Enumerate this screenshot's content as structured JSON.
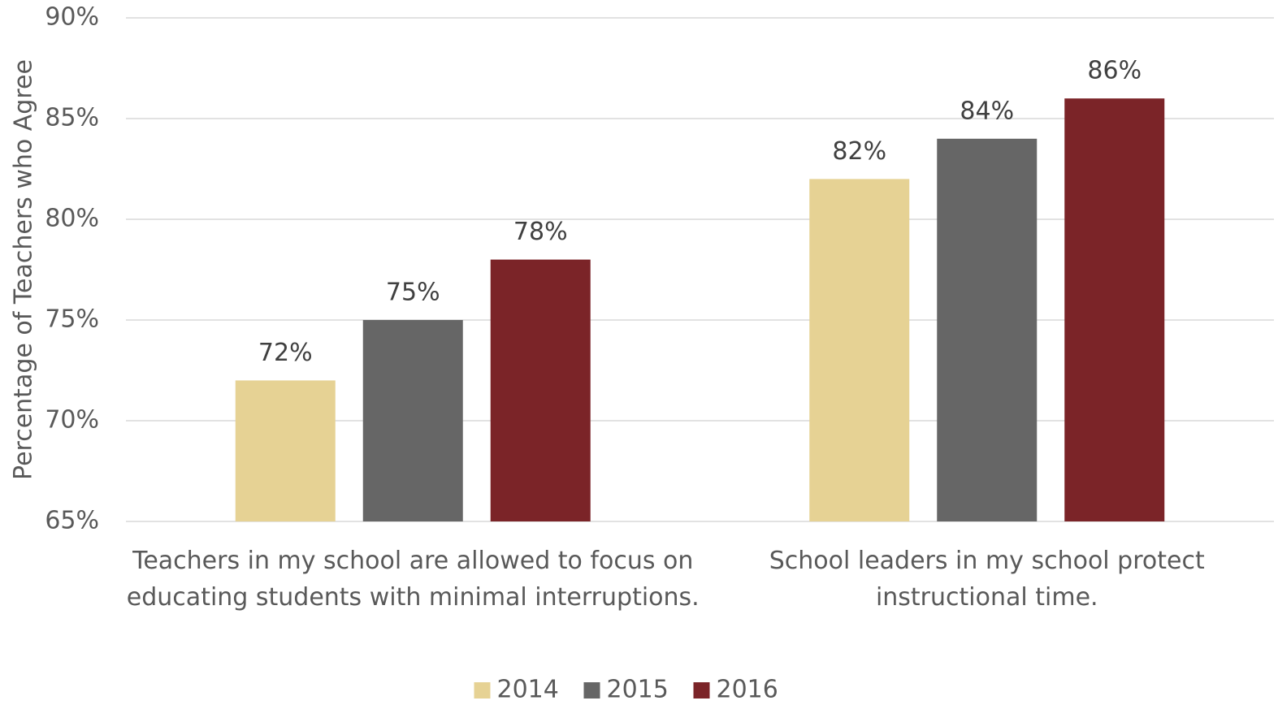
{
  "chart_data": {
    "type": "bar",
    "y_label": "Percentage of Teachers who Agree",
    "categories": [
      "Teachers in my school are allowed to focus on educating students with minimal interruptions.",
      "School leaders in my school protect instructional time."
    ],
    "series": [
      {
        "name": "2014",
        "color": "#e6d294",
        "values": [
          72,
          82
        ],
        "value_labels": [
          "72%",
          "82%"
        ]
      },
      {
        "name": "2015",
        "color": "#666666",
        "values": [
          75,
          84
        ],
        "value_labels": [
          "75%",
          "84%"
        ]
      },
      {
        "name": "2016",
        "color": "#7b2428",
        "values": [
          78,
          86
        ],
        "value_labels": [
          "78%",
          "86%"
        ]
      }
    ],
    "ylim": [
      65,
      90
    ],
    "yticks": [
      {
        "value": 65,
        "label": "65%"
      },
      {
        "value": 70,
        "label": "70%"
      },
      {
        "value": 75,
        "label": "75%"
      },
      {
        "value": 80,
        "label": "80%"
      },
      {
        "value": 85,
        "label": "85%"
      },
      {
        "value": 90,
        "label": "90%"
      }
    ],
    "grid": true,
    "legend": "bottom"
  }
}
